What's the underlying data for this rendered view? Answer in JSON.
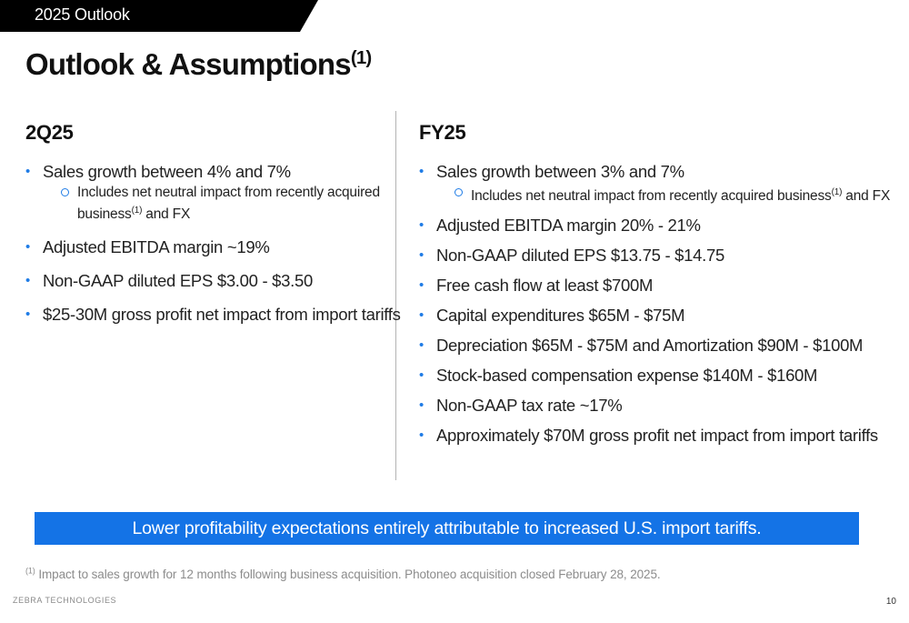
{
  "header": {
    "section_tab": "2025 Outlook"
  },
  "title": {
    "text": "Outlook & Assumptions",
    "superscript": "(1)"
  },
  "left": {
    "heading": "2Q25",
    "bullets": [
      {
        "text": "Sales growth between 4% and 7%",
        "sub": {
          "text_before": "Includes net neutral impact from recently acquired business",
          "superscript": "(1)",
          "text_after": " and FX"
        }
      },
      {
        "text": "Adjusted EBITDA margin ~19%"
      },
      {
        "text": "Non-GAAP diluted EPS $3.00 - $3.50"
      },
      {
        "text": "$25-30M gross profit net impact from import tariffs"
      }
    ]
  },
  "right": {
    "heading": "FY25",
    "bullets": [
      {
        "text": "Sales growth between 3% and 7%",
        "sub": {
          "text_before": "Includes net neutral impact from recently acquired business",
          "superscript": "(1)",
          "text_after": " and FX"
        }
      },
      {
        "text": "Adjusted EBITDA margin 20% - 21%"
      },
      {
        "text": "Non-GAAP diluted EPS $13.75 - $14.75"
      },
      {
        "text": "Free cash flow at least $700M"
      },
      {
        "text": "Capital expenditures $65M - $75M"
      },
      {
        "text": "Depreciation $65M - $75M and Amortization $90M - $100M"
      },
      {
        "text": "Stock-based compensation expense $140M - $160M"
      },
      {
        "text": "Non-GAAP tax rate ~17%"
      },
      {
        "text": "Approximately $70M gross profit net impact from import tariffs"
      }
    ]
  },
  "banner": {
    "text": "Lower profitability expectations entirely attributable to increased U.S. import tariffs."
  },
  "footnote": {
    "marker": "(1)",
    "text": "Impact to sales growth for 12 months following business acquisition. Photoneo acquisition closed February 28, 2025."
  },
  "footer": {
    "brand": "ZEBRA TECHNOLOGIES",
    "page_number": "10"
  },
  "colors": {
    "accent_blue": "#1473e6",
    "bullet_blue": "#1f7ce6",
    "tab_black": "#000000"
  }
}
